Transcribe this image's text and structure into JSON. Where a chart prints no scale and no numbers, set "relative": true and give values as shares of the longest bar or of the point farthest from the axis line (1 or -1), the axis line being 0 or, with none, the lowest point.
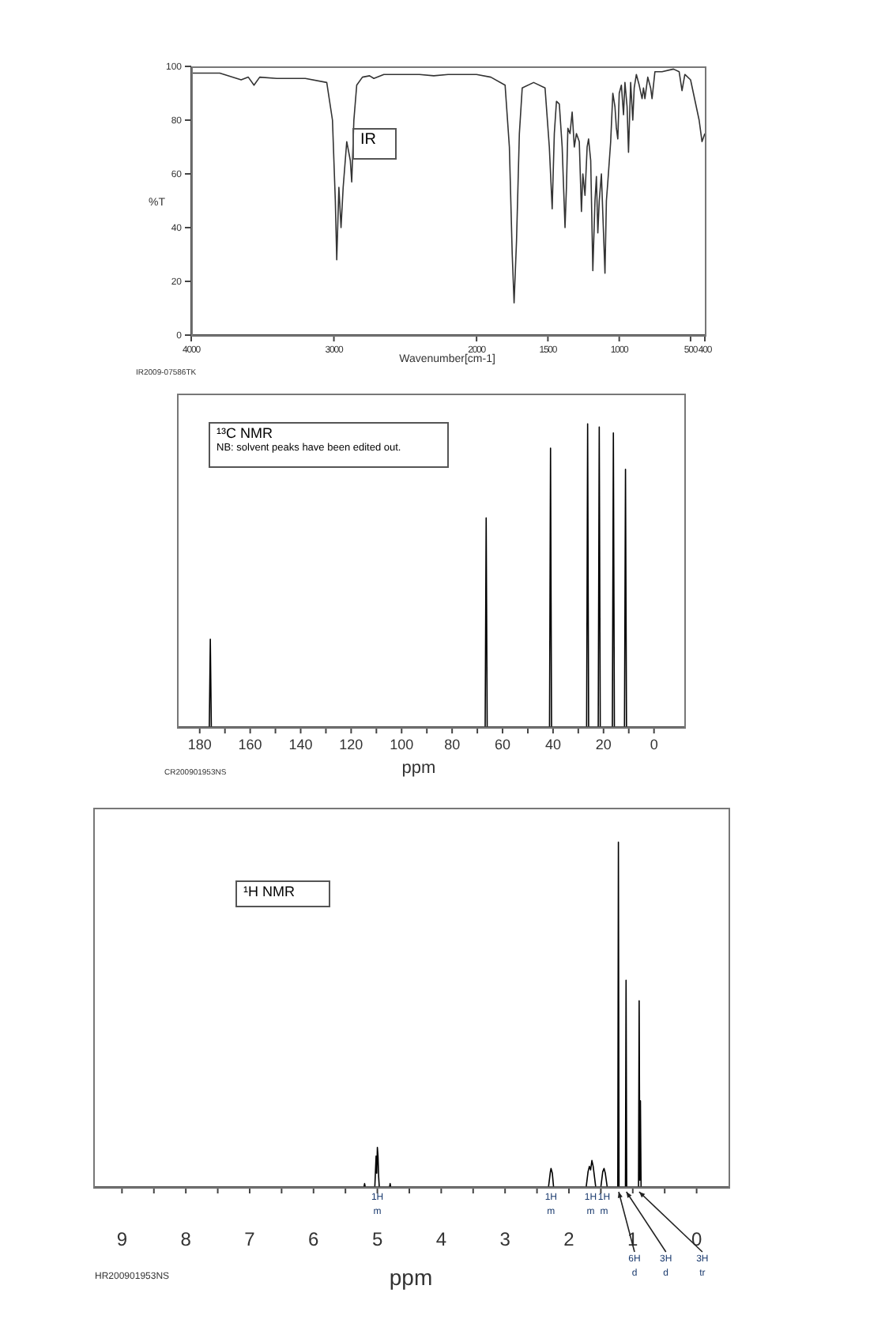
{
  "chart_data": [
    {
      "type": "line",
      "title": "IR",
      "xlabel": "Wavenumber[cm-1]",
      "ylabel": "%T",
      "annotations": [
        "IR2009-07586TK"
      ],
      "xlim": [
        4000,
        400
      ],
      "xticks": [
        4000,
        3000,
        2000,
        1500,
        1000,
        500,
        400
      ],
      "ylim": [
        0,
        100
      ],
      "yticks": [
        0,
        20,
        40,
        60,
        80,
        100
      ],
      "series": [
        {
          "color": "#333333",
          "x": [
            4000,
            3800,
            3650,
            3600,
            3560,
            3520,
            3400,
            3200,
            3050,
            3010,
            2990,
            2980,
            2965,
            2950,
            2935,
            2910,
            2885,
            2875,
            2860,
            2840,
            2800,
            2750,
            2720,
            2650,
            2400,
            2300,
            2200,
            2000,
            1900,
            1800,
            1770,
            1750,
            1737,
            1720,
            1700,
            1680,
            1600,
            1520,
            1490,
            1470,
            1455,
            1440,
            1420,
            1400,
            1380,
            1370,
            1360,
            1345,
            1330,
            1315,
            1300,
            1280,
            1265,
            1255,
            1240,
            1225,
            1215,
            1200,
            1185,
            1170,
            1160,
            1150,
            1140,
            1125,
            1115,
            1100,
            1090,
            1080,
            1060,
            1045,
            1030,
            1020,
            1010,
            1000,
            985,
            970,
            960,
            945,
            935,
            920,
            905,
            895,
            880,
            860,
            840,
            830,
            820,
            800,
            780,
            770,
            750,
            700,
            620,
            580,
            560,
            540,
            500,
            460,
            440,
            420,
            400
          ],
          "values": [
            97.5,
            97.5,
            95,
            96,
            93,
            96,
            95.5,
            95.5,
            94,
            80,
            50,
            28,
            55,
            40,
            55,
            72,
            65,
            57,
            80,
            93,
            96,
            96.5,
            95.5,
            97,
            97,
            96.5,
            97,
            97,
            96,
            93,
            70,
            30,
            12,
            35,
            75,
            92,
            94,
            92,
            70,
            47,
            75,
            87,
            86,
            70,
            40,
            55,
            77,
            75,
            83,
            70,
            75,
            72,
            46,
            60,
            52,
            70,
            73,
            65,
            24,
            50,
            59,
            38,
            50,
            60,
            45,
            23,
            50,
            57,
            72,
            90,
            85,
            77,
            73,
            90,
            93,
            82,
            94,
            85,
            68,
            94,
            80,
            92,
            97,
            93,
            88,
            92,
            88,
            96,
            92,
            88,
            98,
            98,
            99,
            98,
            91,
            97,
            95,
            85,
            80,
            72,
            75
          ]
        }
      ]
    },
    {
      "type": "line",
      "title": "¹³C NMR",
      "subtitle": "NB: solvent peaks have been edited out.",
      "xlabel": "ppm",
      "annotations": [
        "CR200901953NS"
      ],
      "relative": true,
      "xlim": [
        189,
        -12
      ],
      "xticks": [
        180,
        {
          "value": 170,
          "label": null
        },
        160,
        {
          "value": 150,
          "label": null
        },
        140,
        {
          "value": 130,
          "label": null
        },
        120,
        {
          "value": 110,
          "label": null
        },
        100,
        {
          "value": 90,
          "label": null
        },
        80,
        {
          "value": 70,
          "label": null
        },
        60,
        {
          "value": 50,
          "label": null
        },
        40,
        {
          "value": 30,
          "label": null
        },
        20,
        {
          "value": 10,
          "label": null
        },
        0
      ],
      "series": [
        {
          "color": "#000000",
          "x": [
            189,
            176.2,
            175.8,
            175.4,
            80,
            79,
            75,
            66.9,
            66.5,
            66.1,
            41.4,
            41.0,
            40.6,
            26.7,
            26.3,
            25.9,
            22.1,
            21.7,
            21.3,
            16.5,
            16.1,
            15.7,
            11.7,
            11.3,
            10.9,
            4,
            3,
            -5,
            -12
          ],
          "values": [
            0,
            0,
            0.29,
            0,
            0,
            null,
            0,
            0,
            0.69,
            0,
            0,
            0.92,
            0,
            0,
            1,
            0,
            0,
            0.99,
            0,
            0,
            0.97,
            0,
            0,
            0.85,
            0,
            0,
            null,
            0,
            0
          ]
        }
      ]
    },
    {
      "type": "line",
      "title": "¹H NMR",
      "xlabel": "ppm",
      "relative": true,
      "xlim": [
        9.45,
        -0.5
      ],
      "xticks": [
        9,
        {
          "value": 8.5,
          "label": null
        },
        8,
        {
          "value": 7.5,
          "label": null
        },
        7,
        {
          "value": 6.5,
          "label": null
        },
        6,
        {
          "value": 5.5,
          "label": null
        },
        5,
        {
          "value": 4.5,
          "label": null
        },
        4,
        {
          "value": 3.5,
          "label": null
        },
        3,
        {
          "value": 2.5,
          "label": null
        },
        2,
        {
          "value": 1.5,
          "label": null
        },
        1,
        {
          "value": 0.5,
          "label": null
        },
        0
      ],
      "annotations": [
        "HR200901953NS",
        {
          "text": "1H\nm",
          "x": 5.0,
          "y": 0
        },
        {
          "text": "1H\nm",
          "x": 2.28,
          "y": 0
        },
        {
          "text": "1H\nm",
          "x": 1.66,
          "y": 0
        },
        {
          "text": "1H\nm",
          "x": 1.45,
          "y": 0
        },
        {
          "text": "6H\nd",
          "x": 1.22
        },
        {
          "text": "3H\nd",
          "x": 1.1
        },
        {
          "text": "3H\ntr",
          "x": 0.9
        }
      ],
      "series": [
        {
          "color": "#000000",
          "x": [
            9.45,
            5.21,
            5.2,
            5.19,
            5.04,
            5.02,
            5.01,
            5.0,
            4.99,
            4.98,
            4.97,
            4.81,
            4.8,
            4.79,
            2.32,
            2.29,
            2.28,
            2.26,
            2.24,
            1.73,
            1.7,
            1.68,
            1.66,
            1.64,
            1.62,
            1.6,
            1.58,
            1.5,
            1.47,
            1.45,
            1.43,
            1.4,
            1.235,
            1.225,
            1.215,
            1.115,
            1.105,
            1.095,
            0.91,
            0.9,
            0.89,
            0.88,
            0.87,
            -0.5
          ],
          "values": [
            0,
            0,
            0.01,
            0,
            0,
            0.09,
            0.04,
            0.115,
            0.09,
            0.03,
            0,
            0,
            0.01,
            0,
            0,
            0.045,
            0.054,
            0.04,
            0,
            0,
            0.045,
            0.06,
            0.05,
            0.077,
            0.06,
            0.03,
            0,
            0,
            0.045,
            0.054,
            0.04,
            0,
            0,
            1,
            0,
            0,
            0.6,
            0,
            0,
            0.54,
            0.02,
            0.25,
            0,
            0
          ]
        }
      ]
    }
  ]
}
